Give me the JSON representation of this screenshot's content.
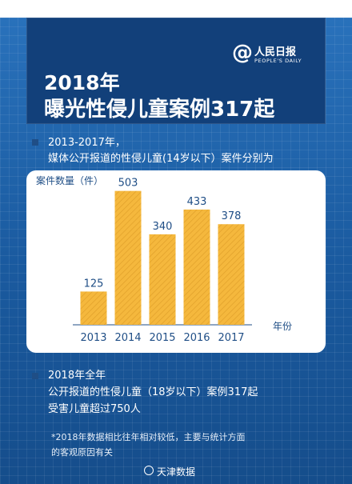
{
  "header": {
    "logo_at": "@",
    "logo_name": "人民日报",
    "logo_sub": "PEOPLE'S DAILY",
    "title_line1": "2018年",
    "title_line2": "曝光性侵儿童案例317起"
  },
  "intro": {
    "line1": "2013-2017年，",
    "line2": "媒体公开报道的性侵儿童(14岁以下）案件分别为"
  },
  "chart_data": {
    "type": "bar",
    "categories": [
      "2013",
      "2014",
      "2015",
      "2016",
      "2017"
    ],
    "values": [
      125,
      503,
      340,
      433,
      378
    ],
    "ylabel": "案件数量（件）",
    "xlabel": "年份",
    "ylim": [
      0,
      520
    ],
    "grid": false,
    "bar_color": "#f5b83d",
    "bar_stripe_color": "#e0a02a",
    "label_color": "#1f4e86"
  },
  "summary": {
    "line1": "2018年全年",
    "line2": "公开报道的性侵儿童（18岁以下）案例317起",
    "line3": "受害儿童超过750人"
  },
  "note": {
    "line1": "*2018年数据相比往年相对较低，主要与统计方面",
    "line2": "的客观原因有关"
  },
  "footer": {
    "brand": "天津数据"
  },
  "colors": {
    "background": "#1c5fa6",
    "title_panel": "#12407a",
    "bullet": "#1f4e86"
  }
}
